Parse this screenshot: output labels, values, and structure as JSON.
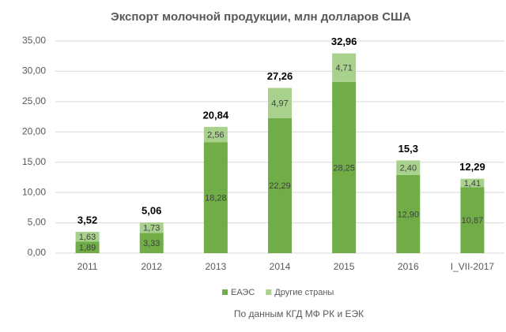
{
  "chart_data": {
    "type": "stacked_bar",
    "title": "Экспорт молочной продукции, млн долларов США",
    "source": "По данным КГД МФ РК и ЕЭК",
    "categories": [
      "2011",
      "2012",
      "2013",
      "2014",
      "2015",
      "2016",
      "I_VII-2017"
    ],
    "series": [
      {
        "name": "ЕАЭС",
        "color": "#70ad47",
        "values": [
          1.89,
          3.33,
          18.28,
          22.29,
          28.25,
          12.9,
          10.87
        ],
        "value_labels": [
          "1,89",
          "3,33",
          "18,28",
          "22,29",
          "28,25",
          "12,90",
          "10,87"
        ]
      },
      {
        "name": "Другие страны",
        "color": "#a9d18e",
        "values": [
          1.63,
          1.73,
          2.56,
          4.97,
          4.71,
          2.4,
          1.41
        ],
        "value_labels": [
          "1,63",
          "1,73",
          "2,56",
          "4,97",
          "4,71",
          "2,40",
          "1,41"
        ]
      }
    ],
    "total_labels": [
      "3,52",
      "5,06",
      "20,84",
      "27,26",
      "32,96",
      "15,3",
      "12,29"
    ],
    "ylim": [
      0,
      35
    ],
    "yticks": [
      {
        "value": 0,
        "label": "0,00"
      },
      {
        "value": 5,
        "label": "5,00"
      },
      {
        "value": 10,
        "label": "10,00"
      },
      {
        "value": 15,
        "label": "15,00"
      },
      {
        "value": 20,
        "label": "20,00"
      },
      {
        "value": 25,
        "label": "25,00"
      },
      {
        "value": 30,
        "label": "30,00"
      },
      {
        "value": 35,
        "label": "35,00"
      }
    ],
    "grid": true,
    "legend": "bottom"
  }
}
